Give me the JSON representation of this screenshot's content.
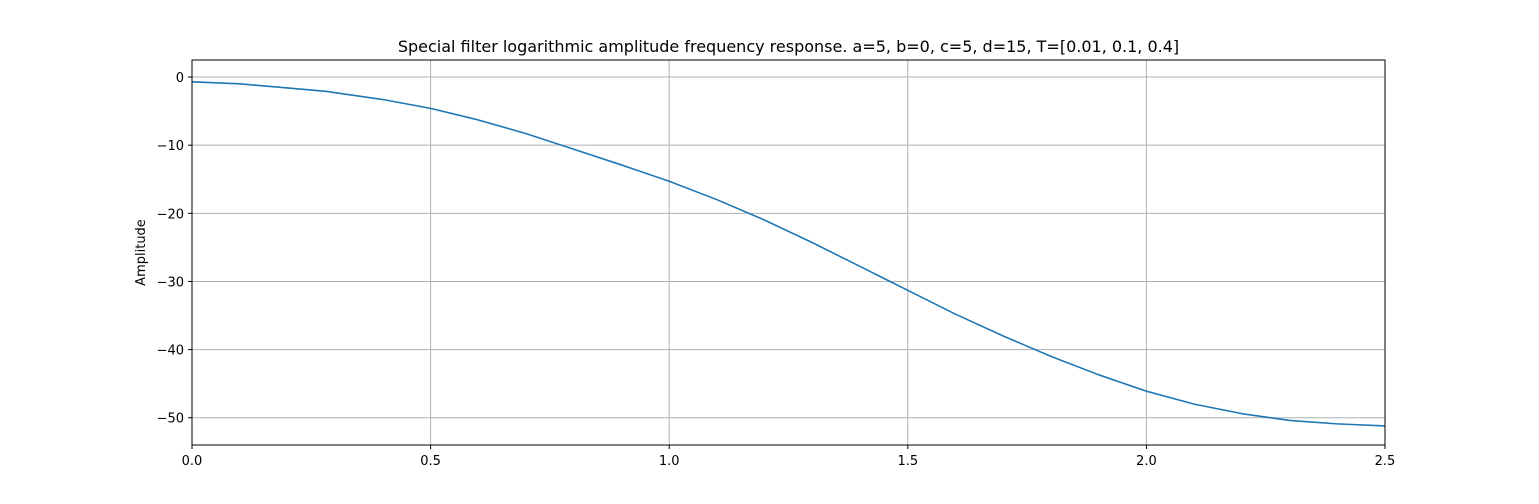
{
  "chart_data": {
    "type": "line",
    "title": "Special filter logarithmic amplitude frequency response. a=5, b=0, c=5, d=15, T=[0.01, 0.1, 0.4]",
    "xlabel": "",
    "ylabel": "Amplitude",
    "xlim": [
      0.0,
      2.5
    ],
    "ylim": [
      -54,
      2.5
    ],
    "x_ticks": [
      0.0,
      0.5,
      1.0,
      1.5,
      2.0,
      2.5
    ],
    "x_tick_labels": [
      "0.0",
      "0.5",
      "1.0",
      "1.5",
      "2.0",
      "2.5"
    ],
    "y_ticks": [
      0,
      -10,
      -20,
      -30,
      -40,
      -50
    ],
    "y_tick_labels": [
      "0",
      "−10",
      "−20",
      "−30",
      "−40",
      "−50"
    ],
    "grid": true,
    "colors": {
      "line": "#1f77b4",
      "grid": "#b0b0b0",
      "axes": "#000000"
    },
    "series": [
      {
        "x": [
          0.0,
          0.1,
          0.2,
          0.28,
          0.4,
          0.5,
          0.6,
          0.7,
          0.8,
          0.9,
          1.0,
          1.1,
          1.2,
          1.3,
          1.4,
          1.5,
          1.6,
          1.7,
          1.8,
          1.9,
          2.0,
          2.1,
          2.2,
          2.3,
          2.4,
          2.5
        ],
        "y": [
          -0.7,
          -1.0,
          -1.6,
          -2.1,
          -3.3,
          -4.6,
          -6.3,
          -8.3,
          -10.6,
          -12.9,
          -15.3,
          -18.0,
          -21.0,
          -24.3,
          -27.8,
          -31.3,
          -34.8,
          -38.0,
          -41.0,
          -43.7,
          -46.1,
          -48.0,
          -49.4,
          -50.4,
          -50.9,
          -51.2
        ]
      }
    ]
  }
}
